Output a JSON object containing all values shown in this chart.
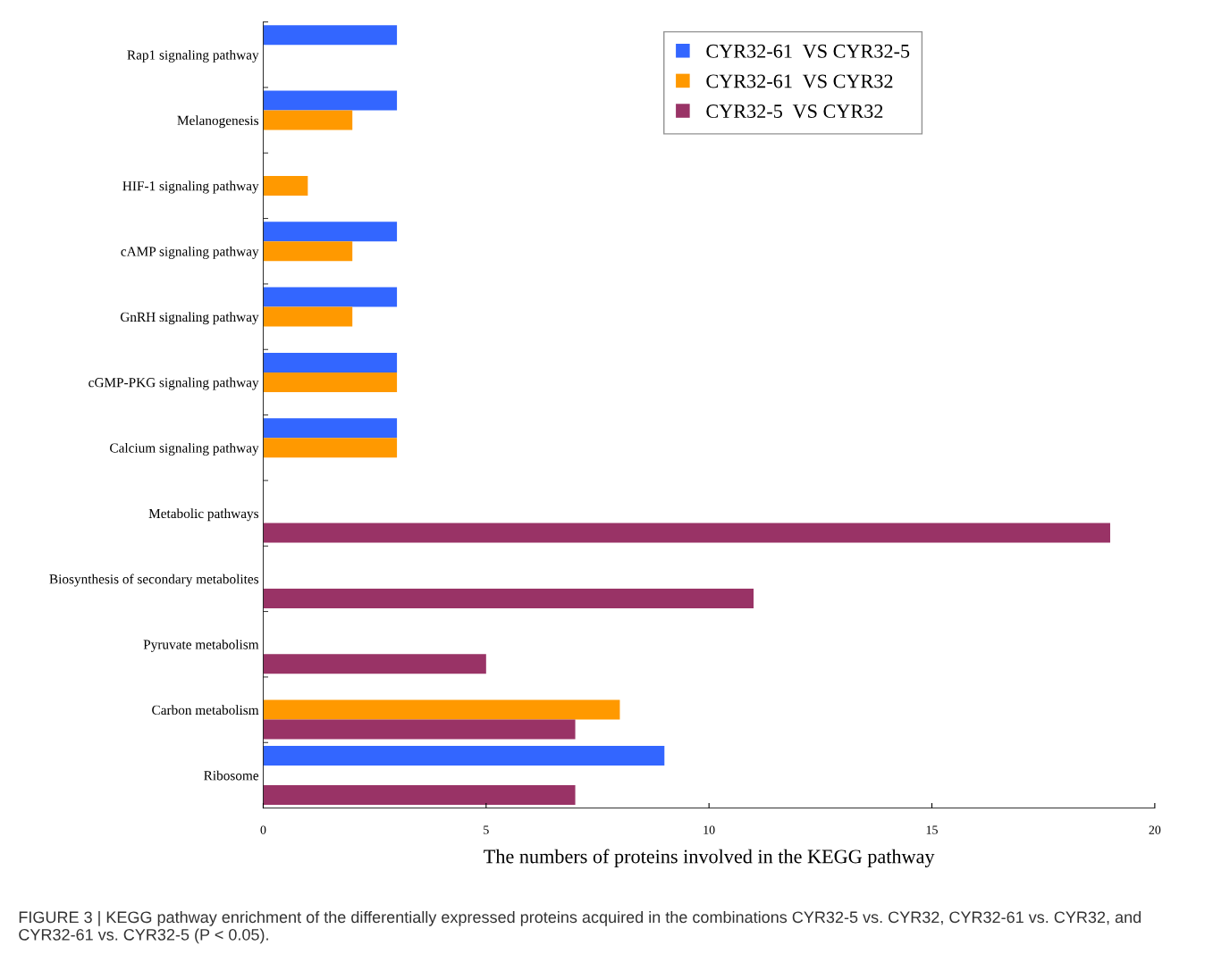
{
  "chart_data": {
    "type": "bar",
    "orientation": "horizontal",
    "xlabel": "The numbers of proteins involved in the KEGG pathway",
    "categories": [
      "Rap1 signaling pathway",
      "Melanogenesis",
      "HIF-1 signaling pathway",
      "cAMP signaling pathway",
      "GnRH signaling pathway",
      "cGMP-PKG signaling pathway",
      "Calcium signaling pathway",
      "Metabolic pathways",
      "Biosynthesis of secondary metabolites",
      "Pyruvate metabolism",
      "Carbon metabolism",
      "Ribosome"
    ],
    "series": [
      {
        "name": "CYR32-61  VS CYR32-5",
        "color": "#3366ff",
        "values": [
          3,
          3,
          null,
          3,
          3,
          3,
          3,
          null,
          null,
          null,
          null,
          9
        ]
      },
      {
        "name": "CYR32-61  VS CYR32",
        "color": "#ff9900",
        "values": [
          null,
          2,
          1,
          2,
          2,
          3,
          3,
          null,
          null,
          null,
          8,
          null
        ]
      },
      {
        "name": "CYR32-5  VS CYR32",
        "color": "#993366",
        "values": [
          null,
          null,
          null,
          null,
          null,
          null,
          null,
          19,
          11,
          5,
          7,
          7
        ]
      }
    ],
    "xlim": [
      0,
      20
    ],
    "xticks": [
      0,
      5,
      10,
      15,
      20
    ],
    "grid": false,
    "legend": "top right",
    "annotations": [
      "FIGURE 3 | KEGG pathway enrichment of the differentially expressed proteins acquired in the combinations CYR32-5 vs. CYR32, CYR32-61 vs. CYR32, and CYR32-61 vs. CYR32-5 (P < 0.05)."
    ]
  }
}
